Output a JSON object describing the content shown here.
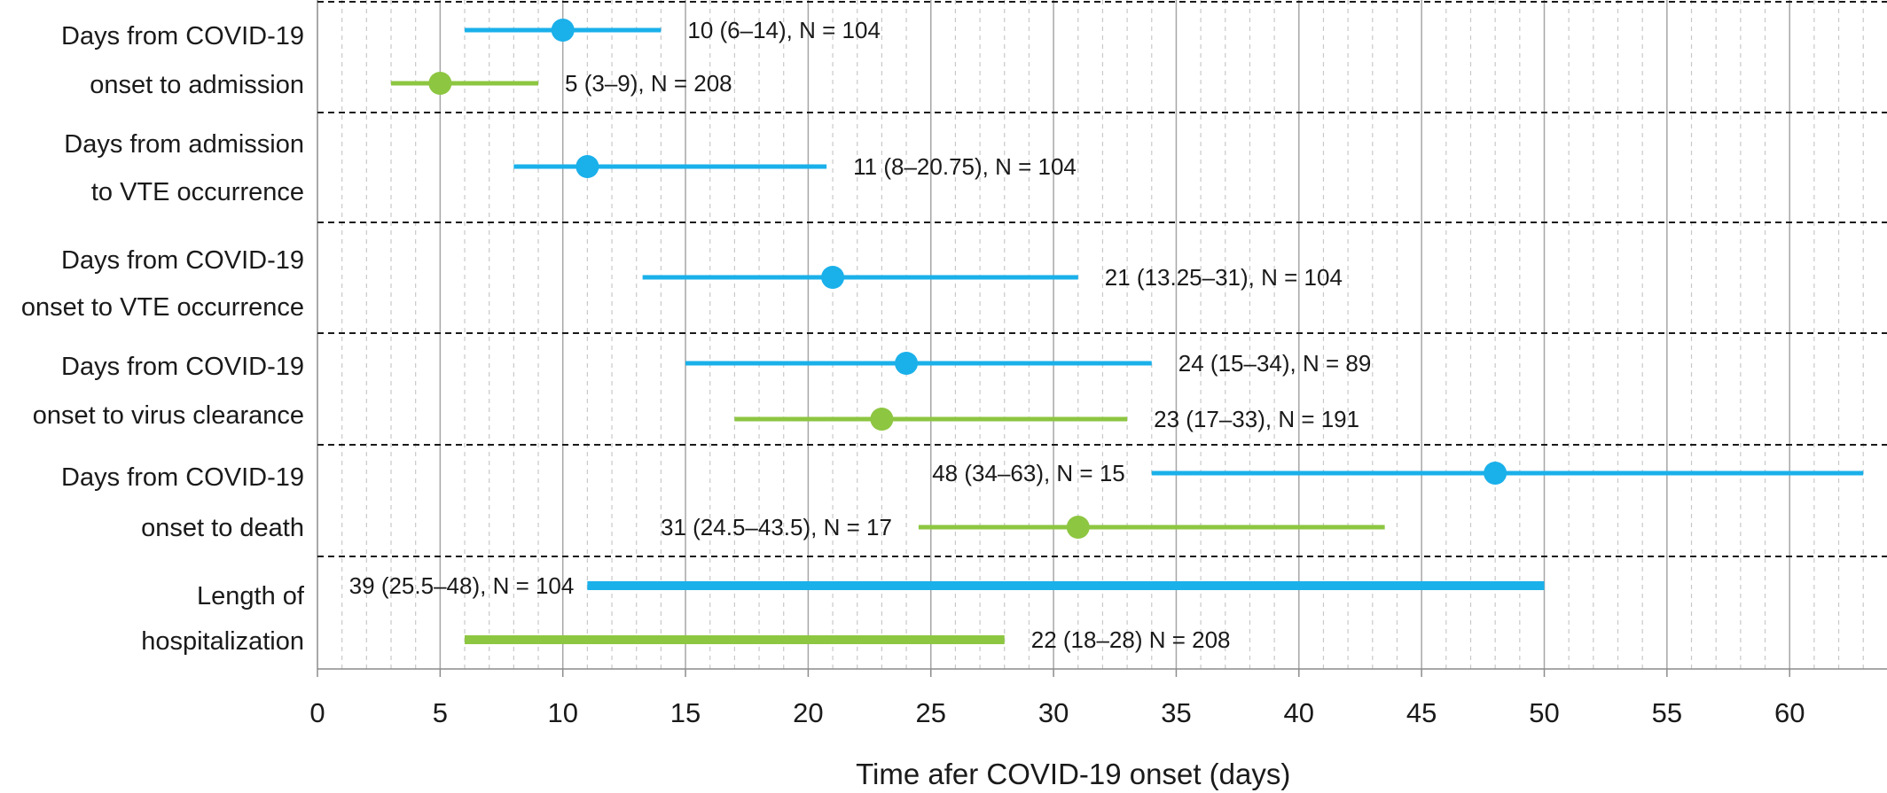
{
  "chart_data": {
    "type": "dot-interval",
    "xlabel": "Time afer COVID-19 onset (days)",
    "xlim": [
      0,
      64
    ],
    "x_ticks": [
      0,
      5,
      10,
      15,
      20,
      25,
      30,
      35,
      40,
      45,
      50,
      55,
      60
    ],
    "x_ticks_labels": [
      "0",
      "5",
      "10",
      "15",
      "20",
      "25",
      "30",
      "35",
      "40",
      "45",
      "50",
      "55",
      "60"
    ],
    "grid": {
      "major": true,
      "minor": true,
      "minor_step": 1
    },
    "colors": {
      "blue": "#1ab0ea",
      "green": "#8dc641"
    },
    "groups": [
      {
        "label_lines": [
          "Days from COVID-19",
          "onset to admission"
        ],
        "series": [
          {
            "color": "blue",
            "median": 10,
            "low": 6,
            "high": 14,
            "label": "10 (6–14), N = 104",
            "label_side": "right",
            "style": "dot"
          },
          {
            "color": "green",
            "median": 5,
            "low": 3,
            "high": 9,
            "label": "5 (3–9), N = 208",
            "label_side": "right",
            "style": "dot"
          }
        ]
      },
      {
        "label_lines": [
          "Days from admission",
          "to VTE occurrence"
        ],
        "series": [
          {
            "color": "blue",
            "median": 11,
            "low": 8,
            "high": 20.75,
            "label": "11 (8–20.75), N = 104",
            "label_side": "right",
            "style": "dot"
          }
        ]
      },
      {
        "label_lines": [
          "Days from COVID-19",
          "onset to VTE occurrence"
        ],
        "series": [
          {
            "color": "blue",
            "median": 21,
            "low": 13.25,
            "high": 31,
            "label": "21 (13.25–31), N = 104",
            "label_side": "right",
            "style": "dot"
          }
        ]
      },
      {
        "label_lines": [
          "Days from COVID-19",
          "onset to virus clearance"
        ],
        "series": [
          {
            "color": "blue",
            "median": 24,
            "low": 15,
            "high": 34,
            "label": "24 (15–34), N = 89",
            "label_side": "right",
            "style": "dot"
          },
          {
            "color": "green",
            "median": 23,
            "low": 17,
            "high": 33,
            "label": "23 (17–33), N = 191",
            "label_side": "right",
            "style": "dot"
          }
        ]
      },
      {
        "label_lines": [
          "Days from COVID-19",
          "onset to death"
        ],
        "series": [
          {
            "color": "blue",
            "median": 48,
            "low": 34,
            "high": 63,
            "label": "48 (34–63), N = 15",
            "label_side": "left",
            "style": "dot"
          },
          {
            "color": "green",
            "median": 31,
            "low": 24.5,
            "high": 43.5,
            "label": "31 (24.5–43.5), N = 17",
            "label_side": "left",
            "style": "dot"
          }
        ]
      },
      {
        "label_lines": [
          "Length of",
          "hospitalization"
        ],
        "series": [
          {
            "color": "blue",
            "median": 39,
            "low": 11,
            "high": 50,
            "label": "39 (25.5–48), N = 104",
            "label_side": "left",
            "style": "bar"
          },
          {
            "color": "green",
            "median": 22,
            "low": 6,
            "high": 28,
            "label": "22 (18–28) N = 208",
            "label_side": "right",
            "style": "bar"
          }
        ]
      }
    ]
  }
}
